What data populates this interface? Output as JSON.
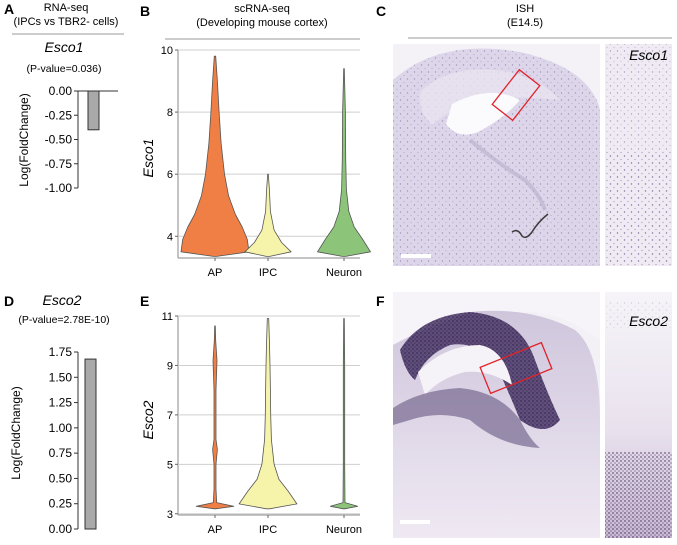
{
  "panels": {
    "A": {
      "letter": "A",
      "header1": "RNA-seq",
      "header2": "(IPCs vs TBR2- cells)",
      "gene": "Esco1",
      "pvalue": "(P-value=0.036)",
      "ylabel": "Log(FoldChange)"
    },
    "B": {
      "letter": "B",
      "header1": "scRNA-seq",
      "header2": "(Developing mouse cortex)",
      "ylabel": "Esco1"
    },
    "C": {
      "letter": "C",
      "header1": "ISH",
      "header2": "(E14.5)",
      "inset_label": "Esco1"
    },
    "D": {
      "letter": "D",
      "gene": "Esco2",
      "pvalue": "(P-value=2.78E-10)",
      "ylabel": "Log(FoldChange)"
    },
    "E": {
      "letter": "E",
      "ylabel": "Esco2"
    },
    "F": {
      "letter": "F",
      "inset_label": "Esco2"
    }
  },
  "colors": {
    "AP": "#f07f45",
    "IPC": "#f6f3ab",
    "Neuron": "#8cc47a",
    "bar": "#a9a9a9",
    "ish_bg": "#e4dfee",
    "ish_stain": "#3d2a5e",
    "box": "#e0232a"
  },
  "chart_data": [
    {
      "id": "A",
      "type": "bar",
      "categories": [
        ""
      ],
      "values": [
        -0.4
      ],
      "title": "Esco1",
      "ylabel": "Log(FoldChange)",
      "ylim": [
        -1.0,
        0.0
      ],
      "yticks": [
        0.0,
        -0.25,
        -0.5,
        -0.75,
        -1.0
      ],
      "ytick_labels": [
        "0.00",
        "-0.25",
        "-0.50",
        "-0.75",
        "-1.00"
      ]
    },
    {
      "id": "D",
      "type": "bar",
      "categories": [
        ""
      ],
      "values": [
        1.68
      ],
      "title": "Esco2",
      "ylabel": "Log(FoldChange)",
      "ylim": [
        0.0,
        1.75
      ],
      "yticks": [
        0.0,
        0.25,
        0.5,
        0.75,
        1.0,
        1.25,
        1.5,
        1.75
      ],
      "ytick_labels": [
        "0.00",
        "0.25",
        "0.50",
        "0.75",
        "1.00",
        "1.25",
        "1.50",
        "1.75"
      ]
    },
    {
      "id": "B",
      "type": "violin",
      "categories": [
        "AP",
        "IPC",
        "Neuron"
      ],
      "ylabel": "Esco1",
      "ylim": [
        3.3,
        10.0
      ],
      "yticks": [
        4,
        6,
        8,
        10
      ],
      "series": [
        {
          "category": "AP",
          "max": 9.8,
          "profile": [
            [
              3.35,
              0.05
            ],
            [
              3.5,
              1.0
            ],
            [
              3.9,
              0.95
            ],
            [
              4.3,
              0.8
            ],
            [
              4.7,
              0.6
            ],
            [
              5.3,
              0.4
            ],
            [
              6.0,
              0.28
            ],
            [
              7.0,
              0.18
            ],
            [
              8.0,
              0.12
            ],
            [
              9.0,
              0.07
            ],
            [
              9.8,
              0.02
            ]
          ]
        },
        {
          "category": "IPC",
          "max": 6.0,
          "profile": [
            [
              3.35,
              0.05
            ],
            [
              3.5,
              0.68
            ],
            [
              3.8,
              0.4
            ],
            [
              4.2,
              0.18
            ],
            [
              4.8,
              0.07
            ],
            [
              5.5,
              0.04
            ],
            [
              6.0,
              0.01
            ]
          ]
        },
        {
          "category": "Neuron",
          "max": 9.4,
          "profile": [
            [
              3.35,
              0.05
            ],
            [
              3.5,
              0.78
            ],
            [
              3.9,
              0.55
            ],
            [
              4.3,
              0.3
            ],
            [
              4.8,
              0.14
            ],
            [
              5.5,
              0.07
            ],
            [
              6.5,
              0.05
            ],
            [
              8.0,
              0.04
            ],
            [
              9.4,
              0.01
            ]
          ]
        }
      ]
    },
    {
      "id": "E",
      "type": "violin",
      "categories": [
        "AP",
        "IPC",
        "Neuron"
      ],
      "ylabel": "Esco2",
      "ylim": [
        2.95,
        11.0
      ],
      "yticks": [
        3,
        5,
        7,
        9,
        11
      ],
      "series": [
        {
          "category": "AP",
          "max": 10.6,
          "profile": [
            [
              3.2,
              0.02
            ],
            [
              3.3,
              0.55
            ],
            [
              3.45,
              0.05
            ],
            [
              4.0,
              0.03
            ],
            [
              5.0,
              0.03
            ],
            [
              5.6,
              0.07
            ],
            [
              6.0,
              0.03
            ],
            [
              7.0,
              0.03
            ],
            [
              8.0,
              0.03
            ],
            [
              9.2,
              0.06
            ],
            [
              10.0,
              0.02
            ],
            [
              10.6,
              0.01
            ]
          ]
        },
        {
          "category": "IPC",
          "max": 10.9,
          "profile": [
            [
              3.2,
              0.05
            ],
            [
              3.4,
              0.85
            ],
            [
              3.9,
              0.6
            ],
            [
              4.4,
              0.32
            ],
            [
              5.0,
              0.18
            ],
            [
              6.0,
              0.1
            ],
            [
              7.0,
              0.08
            ],
            [
              8.0,
              0.07
            ],
            [
              9.0,
              0.06
            ],
            [
              10.0,
              0.04
            ],
            [
              10.9,
              0.02
            ]
          ]
        },
        {
          "category": "Neuron",
          "max": 10.9,
          "profile": [
            [
              3.2,
              0.02
            ],
            [
              3.3,
              0.4
            ],
            [
              3.45,
              0.03
            ],
            [
              5.0,
              0.02
            ],
            [
              7.0,
              0.02
            ],
            [
              9.0,
              0.02
            ],
            [
              10.9,
              0.01
            ]
          ]
        }
      ]
    }
  ]
}
